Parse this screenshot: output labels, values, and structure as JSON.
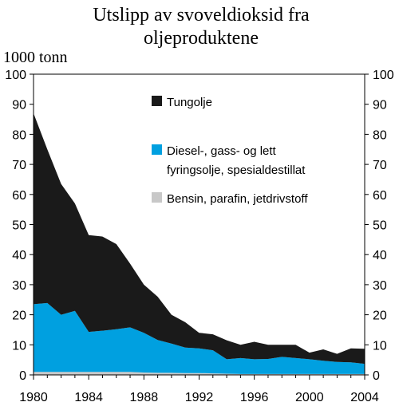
{
  "chart_data": {
    "type": "area",
    "title_lines": [
      "Utslipp av svoveldioksid fra",
      "oljeproduktene"
    ],
    "ylabel": "1000 tonn",
    "xlim": [
      1980,
      2004
    ],
    "ylim": [
      0,
      100
    ],
    "x_ticks": [
      1980,
      1984,
      1988,
      1992,
      1996,
      2000,
      2004
    ],
    "y_ticks": [
      0,
      10,
      20,
      30,
      40,
      50,
      60,
      70,
      80,
      90,
      100
    ],
    "x": [
      1980,
      1981,
      1982,
      1983,
      1984,
      1985,
      1986,
      1987,
      1988,
      1989,
      1990,
      1991,
      1992,
      1993,
      1994,
      1995,
      1996,
      1997,
      1998,
      1999,
      2000,
      2001,
      2002,
      2003,
      2004
    ],
    "stacked": true,
    "series": [
      {
        "name": "Bensin, parafin, jetdrivstoff",
        "color": "#c8c8c8",
        "values": [
          1,
          1,
          1,
          1,
          1,
          1,
          1,
          1,
          0.8,
          0.7,
          0.7,
          0.6,
          0.6,
          0.5,
          0.4,
          0.3,
          0.3,
          0.3,
          0.3,
          0.3,
          0.3,
          0.3,
          0.3,
          0.3,
          0.3
        ]
      },
      {
        "name": "Diesel-, gass- og lett fyringsolje, spesialdestillat",
        "name_lines": [
          "Diesel-, gass- og lett",
          "fyringsolje, spesialdestillat"
        ],
        "color": "#00a0e0",
        "values": [
          22.5,
          22.9,
          19,
          20.3,
          13.3,
          13.7,
          14.2,
          14.8,
          13.2,
          10.9,
          9.7,
          8.5,
          8.2,
          7.7,
          4.8,
          5.3,
          4.9,
          5.0,
          5.7,
          5.3,
          4.9,
          4.4,
          4.0,
          3.9,
          3.4
        ]
      },
      {
        "name": "Tungolje",
        "color": "#1a1a1a",
        "values": [
          63.5,
          51.1,
          43.5,
          35.7,
          32.2,
          31.3,
          28.3,
          21.2,
          16.0,
          14.4,
          9.6,
          8.4,
          5.2,
          5.3,
          6.3,
          4.4,
          5.8,
          4.7,
          4.0,
          4.4,
          2.2,
          3.8,
          2.7,
          4.6,
          5.0
        ]
      }
    ],
    "legend_order": [
      2,
      1,
      0
    ]
  }
}
